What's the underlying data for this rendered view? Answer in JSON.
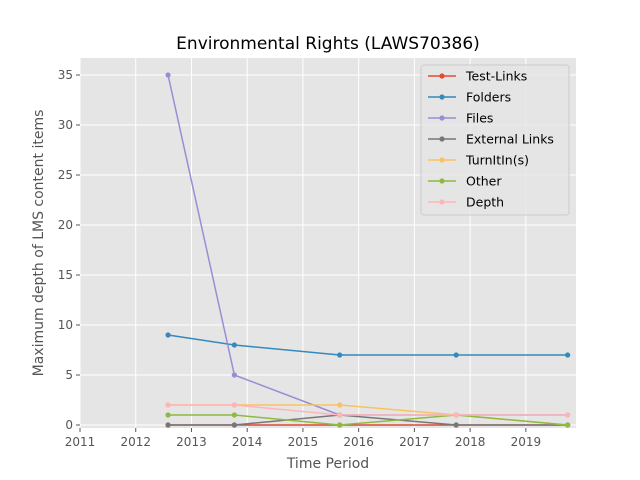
{
  "chart_data": {
    "type": "line",
    "title": "Environmental Rights (LAWS70386)",
    "xlabel": "Time Period",
    "ylabel": "Maximum depth of LMS content items",
    "xlim": [
      2011.0,
      2019.9
    ],
    "ylim": [
      -0.3,
      36.7
    ],
    "xticks": [
      2011,
      2012,
      2013,
      2014,
      2015,
      2016,
      2017,
      2018,
      2019
    ],
    "yticks": [
      0,
      5,
      10,
      15,
      20,
      25,
      30,
      35
    ],
    "grid": true,
    "legend_position": "top-right",
    "x": [
      2012.58,
      2013.77,
      2015.66,
      2017.75,
      2019.75
    ],
    "series": [
      {
        "name": "Test-Links",
        "color": "#E24A33",
        "values": [
          0,
          0,
          0,
          0,
          0
        ]
      },
      {
        "name": "Folders",
        "color": "#348ABD",
        "values": [
          9,
          8,
          7,
          7,
          7
        ]
      },
      {
        "name": "Files",
        "color": "#988ED5",
        "values": [
          35,
          5,
          1,
          1,
          1
        ]
      },
      {
        "name": "External Links",
        "color": "#777777",
        "values": [
          0,
          0,
          1,
          0,
          0
        ]
      },
      {
        "name": "TurnItIn(s)",
        "color": "#FBC15E",
        "values": [
          2,
          2,
          2,
          1,
          0
        ]
      },
      {
        "name": "Other",
        "color": "#8EBA42",
        "values": [
          1,
          1,
          0,
          1,
          0
        ]
      },
      {
        "name": "Depth",
        "color": "#FFB5B8",
        "values": [
          2,
          2,
          1,
          1,
          1
        ]
      }
    ]
  }
}
